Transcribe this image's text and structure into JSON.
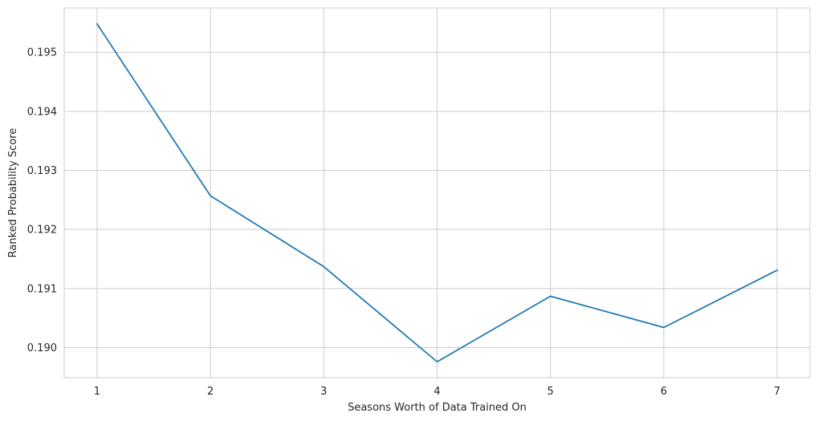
{
  "chart_data": {
    "type": "line",
    "title": "",
    "xlabel": "Seasons Worth of Data Trained On",
    "ylabel": "Ranked Probability Score",
    "x": [
      1,
      2,
      3,
      4,
      5,
      6,
      7
    ],
    "series": [
      {
        "name": "",
        "values": [
          0.19548,
          0.19257,
          0.19137,
          0.18976,
          0.19087,
          0.19034,
          0.19131
        ],
        "color": "#1f77b4"
      }
    ],
    "xlim": [
      0.71,
      7.29
    ],
    "ylim": [
      0.18949,
      0.19575
    ],
    "xticks": [
      1,
      2,
      3,
      4,
      5,
      6,
      7
    ],
    "xtick_labels": [
      "1",
      "2",
      "3",
      "4",
      "5",
      "6",
      "7"
    ],
    "yticks": [
      0.19,
      0.191,
      0.192,
      0.193,
      0.194,
      0.195
    ],
    "ytick_labels": [
      "0.190",
      "0.191",
      "0.192",
      "0.193",
      "0.194",
      "0.195"
    ],
    "grid": true,
    "grid_color": "#cccccc",
    "spine_color": "#cccccc",
    "text_color": "#262626",
    "legend": "none"
  }
}
